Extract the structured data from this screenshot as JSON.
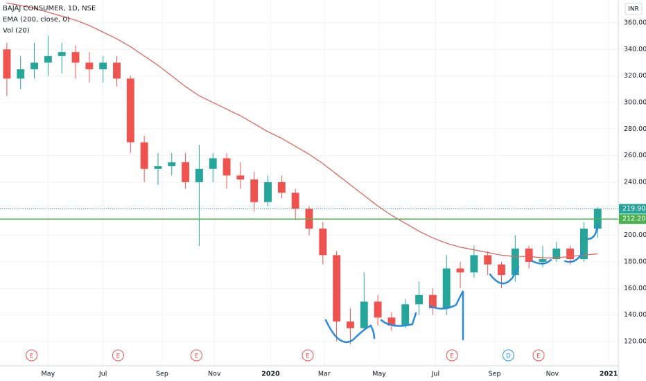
{
  "chart_data": {
    "type": "candlestick",
    "title": "BAJAJ CONSUMER, 1D, NSE",
    "indicator_label": "Vol (20)",
    "currency": "INR",
    "up_color": "#26a69a",
    "down_color": "#ef5350",
    "xlim": [
      0,
      45
    ],
    "xticks": [
      {
        "value": 3.5,
        "label": "May"
      },
      {
        "value": 7.5,
        "label": "Jul"
      },
      {
        "value": 11.8,
        "label": "Sep"
      },
      {
        "value": 15.6,
        "label": "Nov"
      },
      {
        "value": 19.7,
        "label": "2020"
      },
      {
        "value": 23.6,
        "label": "Mar"
      },
      {
        "value": 27.6,
        "label": "May"
      },
      {
        "value": 31.7,
        "label": "Jul"
      },
      {
        "value": 36.0,
        "label": "Sep"
      },
      {
        "value": 40.2,
        "label": "Nov"
      },
      {
        "value": 44.3,
        "label": "2021"
      }
    ],
    "ylim": [
      101.7,
      377.2
    ],
    "yticks": [
      {
        "value": 120,
        "label": "120.00"
      },
      {
        "value": 140,
        "label": "140.00"
      },
      {
        "value": 160,
        "label": "160.00"
      },
      {
        "value": 180,
        "label": "180.00"
      },
      {
        "value": 200,
        "label": "200.00"
      },
      {
        "value": 220,
        "label": "220.00"
      },
      {
        "value": 240,
        "label": "240.00"
      },
      {
        "value": 260,
        "label": "260.00"
      },
      {
        "value": 280,
        "label": "280.00"
      },
      {
        "value": 300,
        "label": "300.00"
      },
      {
        "value": 320,
        "label": "320.00"
      },
      {
        "value": 340,
        "label": "340.00"
      },
      {
        "value": 360,
        "label": "360.00"
      }
    ],
    "grid": true,
    "open": [
      340,
      318,
      325,
      330,
      335,
      338,
      330,
      325,
      330,
      318,
      270,
      250,
      252,
      255,
      240,
      250,
      258,
      245,
      242,
      225,
      240,
      232,
      220,
      205,
      185,
      135,
      130,
      150,
      138,
      132,
      148,
      155,
      145,
      175,
      172,
      185,
      178,
      170,
      190,
      180,
      182,
      190,
      182,
      205
    ],
    "high": [
      345,
      335,
      345,
      350,
      345,
      343,
      338,
      335,
      335,
      320,
      275,
      262,
      262,
      262,
      268,
      262,
      262,
      255,
      248,
      245,
      245,
      235,
      222,
      210,
      188,
      145,
      172,
      155,
      142,
      152,
      165,
      160,
      185,
      180,
      192,
      188,
      180,
      200,
      192,
      192,
      195,
      192,
      210,
      221
    ],
    "low": [
      305,
      310,
      318,
      320,
      322,
      318,
      315,
      315,
      312,
      262,
      240,
      238,
      245,
      235,
      192,
      240,
      235,
      235,
      218,
      222,
      228,
      212,
      200,
      178,
      120,
      118,
      128,
      132,
      128,
      130,
      140,
      140,
      140,
      160,
      168,
      170,
      160,
      165,
      175,
      176,
      180,
      178,
      180,
      198
    ],
    "close": [
      318,
      325,
      330,
      335,
      338,
      330,
      325,
      330,
      318,
      270,
      250,
      252,
      255,
      240,
      250,
      258,
      245,
      242,
      225,
      240,
      232,
      220,
      205,
      185,
      135,
      130,
      150,
      138,
      132,
      148,
      155,
      145,
      175,
      172,
      185,
      178,
      170,
      190,
      180,
      182,
      190,
      182,
      205,
      220
    ],
    "series": [
      {
        "name": "EMA (200, close, 0)",
        "color": "#e0665e",
        "values": [
          375,
          373,
          371,
          368,
          365,
          362,
          358,
          353,
          348,
          342,
          335,
          328,
          320,
          312,
          305,
          300,
          295,
          290,
          284,
          278,
          273,
          267,
          261,
          254,
          246,
          238,
          230,
          222,
          215,
          209,
          203,
          198,
          194,
          191,
          189,
          187,
          185,
          184,
          184,
          183,
          183,
          184,
          185,
          186
        ]
      }
    ],
    "levels": [
      {
        "value": 219.9,
        "label": "219.90",
        "color": "#26a69a",
        "style": "dotted"
      },
      {
        "value": 212.2,
        "label": "212.20",
        "color": "#4caf50",
        "style": "solid"
      }
    ],
    "events": [
      {
        "x": 2.3,
        "label": "E",
        "color": "#ef5350"
      },
      {
        "x": 8.6,
        "label": "E",
        "color": "#ef5350"
      },
      {
        "x": 14.3,
        "label": "E",
        "color": "#ef5350"
      },
      {
        "x": 22.4,
        "label": "E",
        "color": "#ef5350"
      },
      {
        "x": 32.9,
        "label": "E",
        "color": "#ef5350"
      },
      {
        "x": 37.0,
        "label": "D",
        "color": "#2196f3"
      },
      {
        "x": 39.2,
        "label": "E",
        "color": "#ef5350"
      }
    ]
  }
}
